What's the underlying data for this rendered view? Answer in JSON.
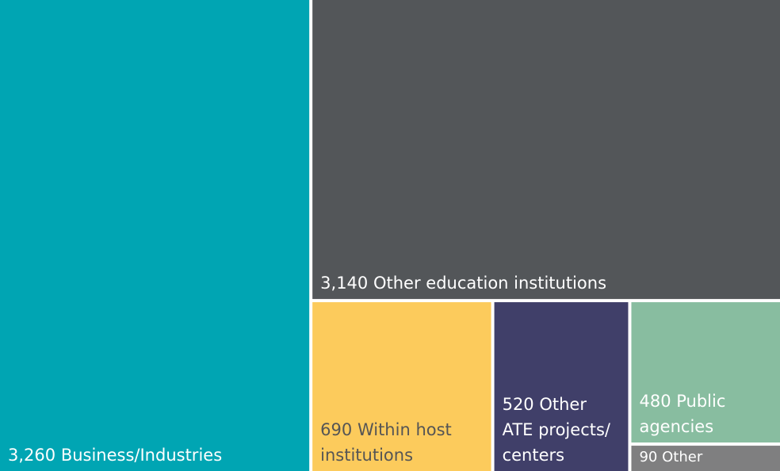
{
  "chart_data": {
    "type": "treemap",
    "categories": [
      "Business/Industries",
      "Other education institutions",
      "Within host institutions",
      "Other ATE projects/ centers",
      "Public agencies",
      "Other"
    ],
    "values": [
      3260,
      3140,
      690,
      520,
      480,
      90
    ],
    "value_labels": [
      "3,260",
      "3,140",
      "690",
      "520",
      "480",
      "90"
    ],
    "colors": [
      "#00a5b3",
      "#535659",
      "#fccb5c",
      "#403f69",
      "#88bda0",
      "#7f7f80"
    ],
    "label_colors": [
      "#ffffff",
      "#ffffff",
      "#555555",
      "#ffffff",
      "#ffffff",
      "#ffffff"
    ]
  }
}
